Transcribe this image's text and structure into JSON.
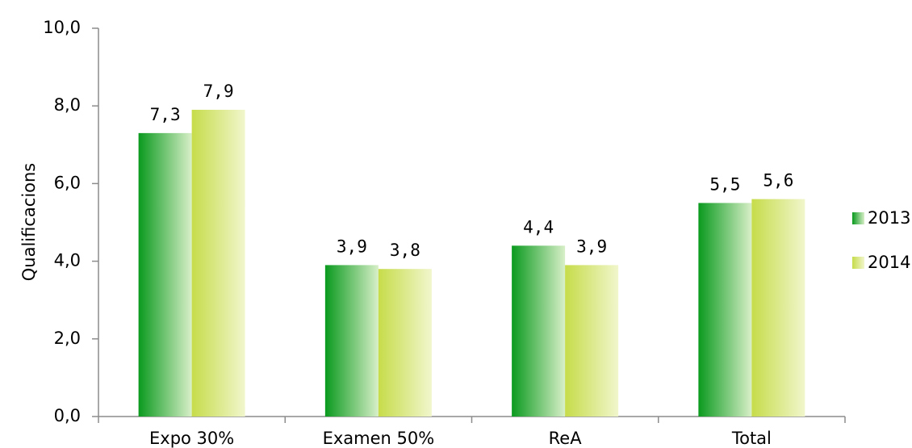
{
  "chart_data": {
    "type": "bar",
    "title": "",
    "xlabel": "",
    "ylabel": "Qualificacions",
    "ylim": [
      0,
      10
    ],
    "yticks": [
      "0,0",
      "2,0",
      "4,0",
      "6,0",
      "8,0",
      "10,0"
    ],
    "categories": [
      "Expo 30%",
      "Examen 50%",
      "ReA",
      "Total"
    ],
    "series": [
      {
        "name": "2013",
        "values": [
          7.3,
          3.9,
          4.4,
          5.5
        ],
        "labels": [
          "7,3",
          "3,9",
          "4,4",
          "5,5"
        ],
        "color_dark": "#0a9a1e",
        "color_light": "#d8efc8"
      },
      {
        "name": "2014",
        "values": [
          7.9,
          3.8,
          3.9,
          5.6
        ],
        "labels": [
          "7,9",
          "3,8",
          "3,9",
          "5,6"
        ],
        "color_dark": "#c7dc4a",
        "color_light": "#f1f6cc"
      }
    ],
    "grid": false,
    "legend_position": "right"
  }
}
